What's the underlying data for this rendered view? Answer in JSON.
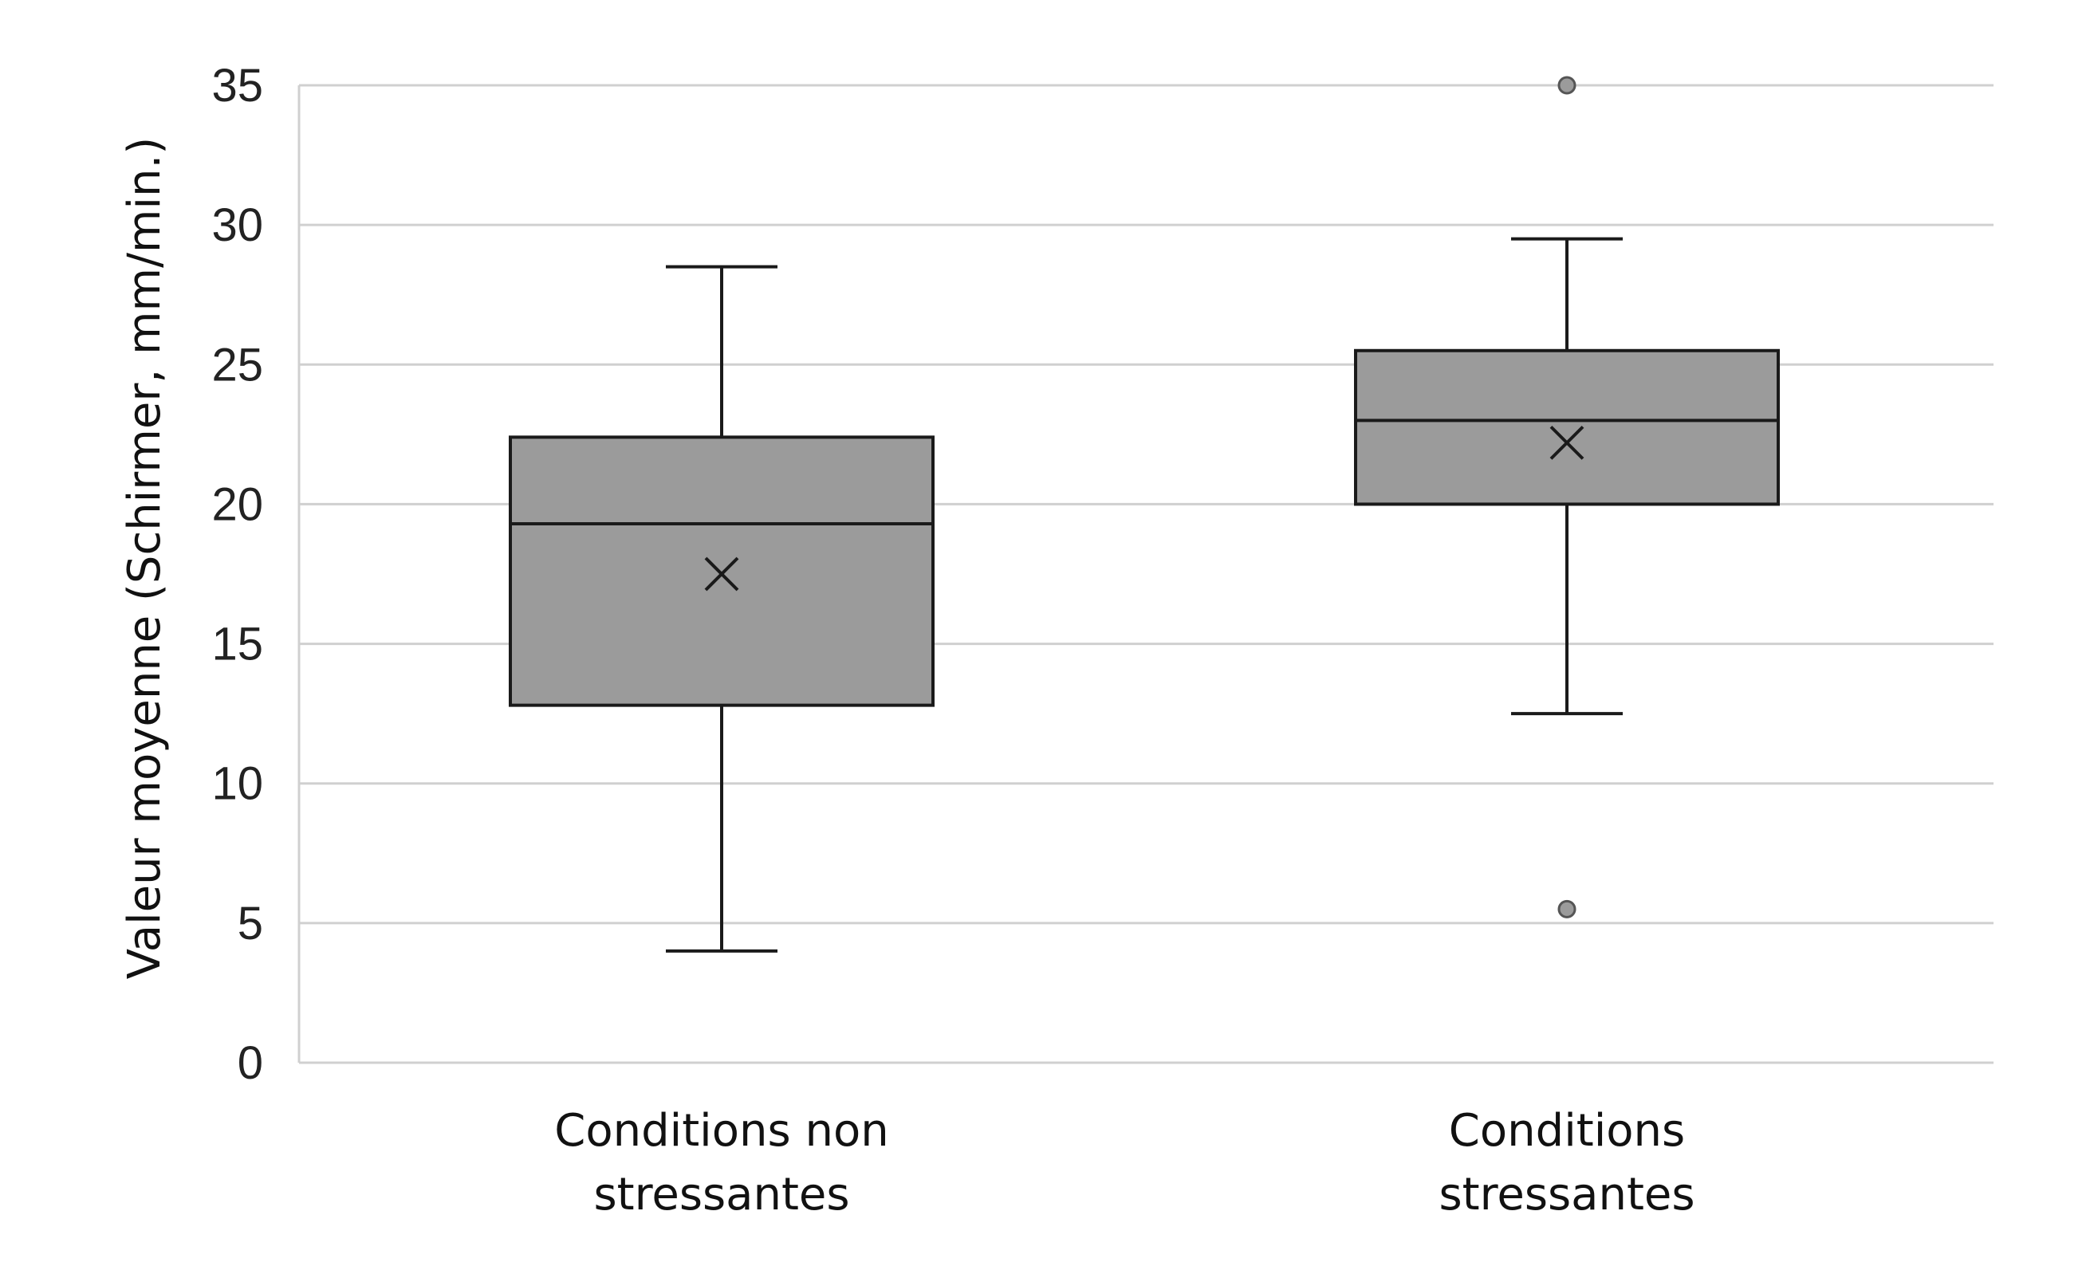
{
  "chart_data": {
    "type": "boxplot",
    "ylabel": "Valeur moyenne (Schirmer, mm/min.)",
    "ylim": [
      0,
      35
    ],
    "yticks": [
      0,
      5,
      10,
      15,
      20,
      25,
      30,
      35
    ],
    "grid": true,
    "colors": {
      "box_fill": "#9b9b9b",
      "stroke": "#1a1a1a",
      "grid": "#d0d0d0",
      "outlier_fill": "#9b9b9b"
    },
    "categories": [
      [
        "Conditions non",
        "stressantes"
      ],
      [
        "Conditions",
        "stressantes"
      ]
    ],
    "boxes": [
      {
        "whisker_low": 4,
        "q1": 12.8,
        "median": 19.3,
        "q3": 22.4,
        "whisker_high": 28.5,
        "mean": 17.5,
        "outliers": []
      },
      {
        "whisker_low": 12.5,
        "q1": 20,
        "median": 23,
        "q3": 25.5,
        "whisker_high": 29.5,
        "mean": 22.2,
        "outliers": [
          35,
          5.5
        ]
      }
    ]
  }
}
